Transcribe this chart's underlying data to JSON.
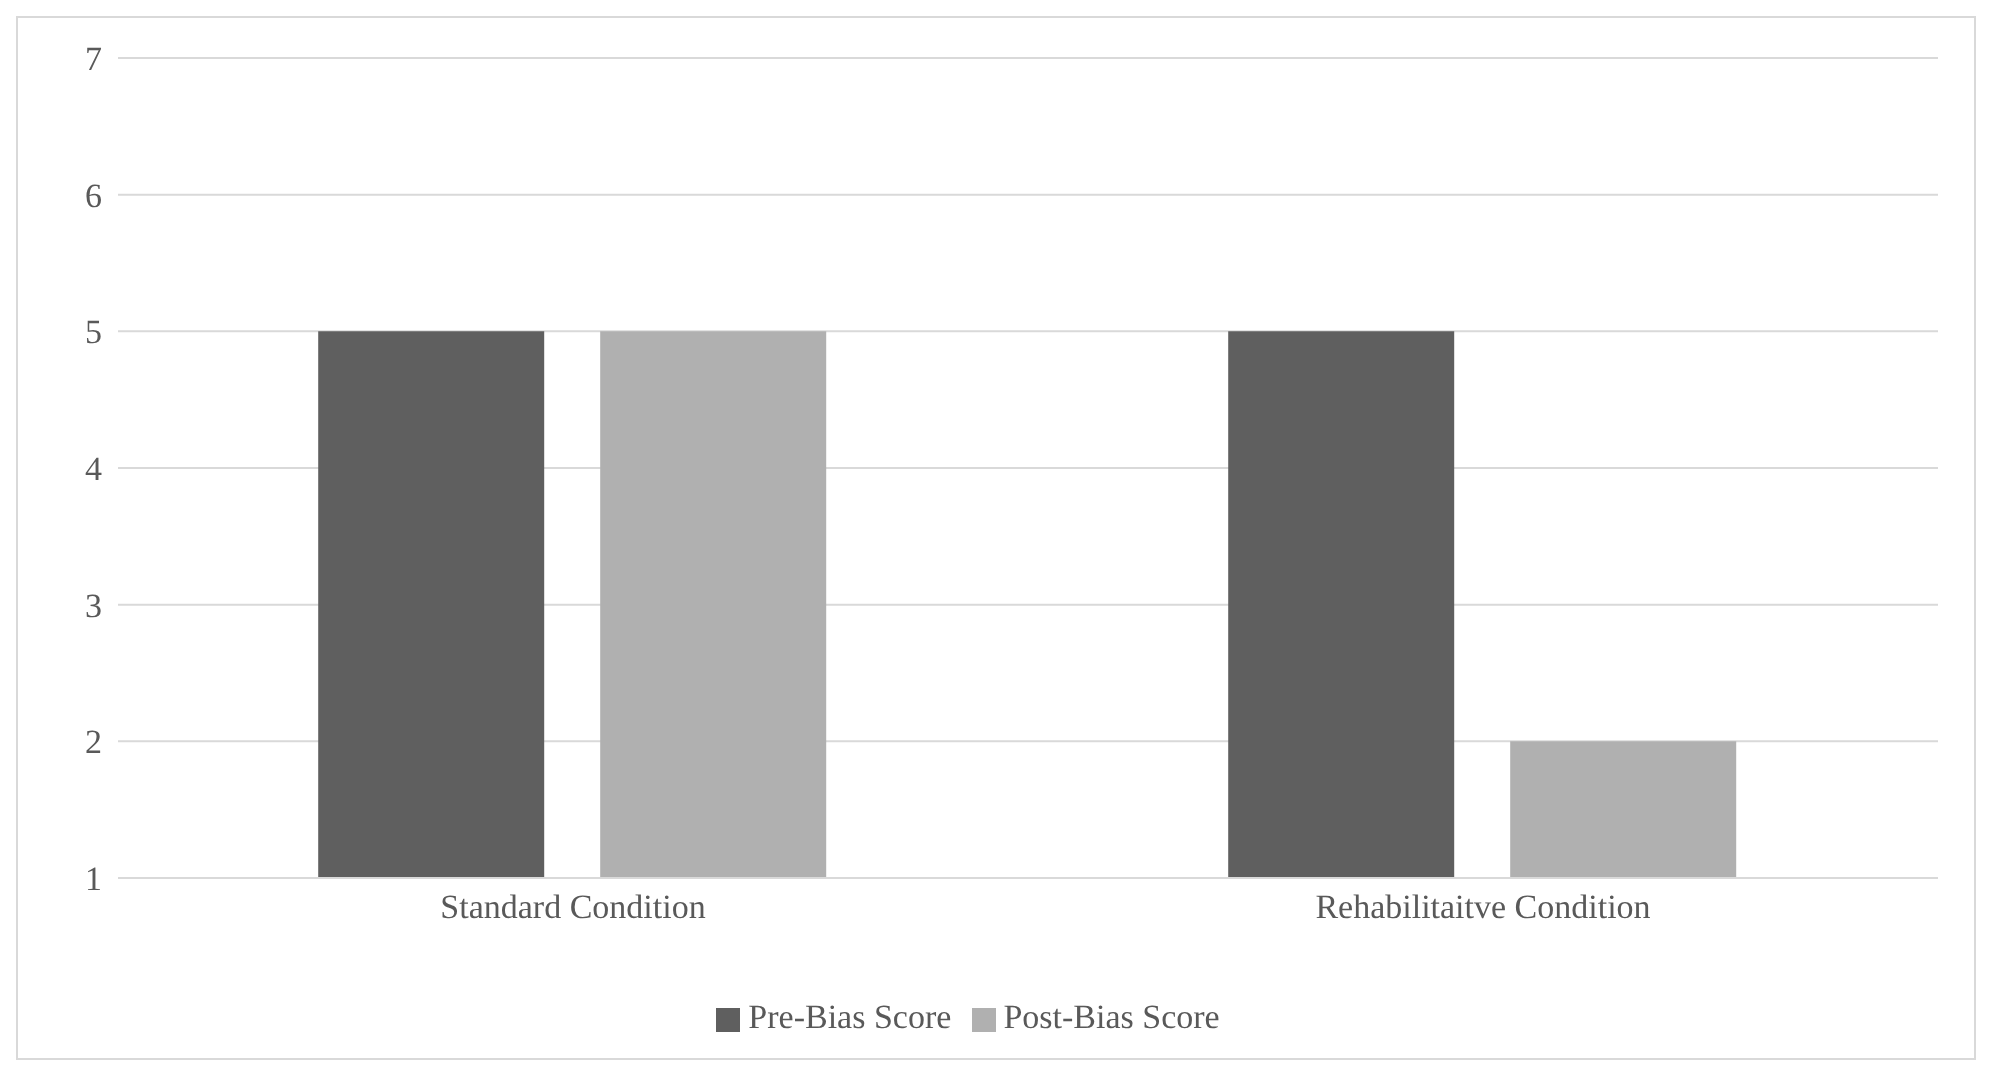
{
  "chart_data": {
    "type": "bar",
    "categories": [
      "Standard Condition",
      "Rehabilitaitve Condition"
    ],
    "series": [
      {
        "name": "Pre-Bias Score",
        "color": "#5f5f5f",
        "values": [
          5,
          5
        ]
      },
      {
        "name": "Post-Bias Score",
        "color": "#b0b0b0",
        "values": [
          5,
          2
        ]
      }
    ],
    "ylim": [
      1,
      7
    ],
    "yticks": [
      1,
      2,
      3,
      4,
      5,
      6,
      7
    ],
    "grid": "y",
    "legend": "bottom"
  }
}
